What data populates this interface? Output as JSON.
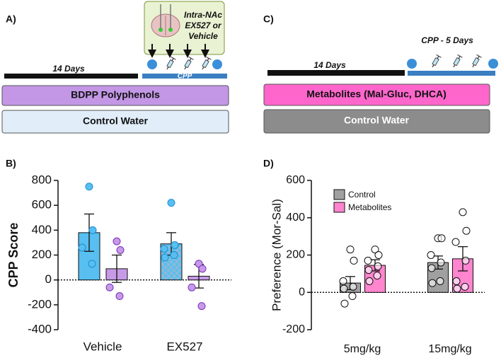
{
  "panels": {
    "a": "A)",
    "b": "B)",
    "c": "C)",
    "d": "D)"
  },
  "diagram_a": {
    "injection": [
      "Intra-NAc",
      "EX527 or",
      "Vehicle"
    ],
    "phase1": "14 Days",
    "phase2": "CPP",
    "treatment": "BDPP Polyphenols",
    "control": "Control Water"
  },
  "diagram_c": {
    "phase2": "CPP - 5 Days",
    "phase1": "14 Days",
    "treatment": "Metabolites (Mal-Gluc, DHCA)",
    "control": "Control Water"
  },
  "chart_data": [
    {
      "type": "bar",
      "ylabel": "CPP Score",
      "categories": [
        "Vehicle",
        "EX527"
      ],
      "ylim": [
        -400,
        800
      ],
      "yticks": [
        -400,
        -200,
        0,
        200,
        400,
        600,
        800
      ],
      "legend": false,
      "series": [
        {
          "color": "#58bff0",
          "hatch": [
            false,
            true
          ],
          "values": [
            380,
            290
          ],
          "errors": [
            150,
            90
          ],
          "points": [
            [
              750,
              400,
              260,
              130
            ],
            [
              620,
              280,
              250,
              200,
              180
            ]
          ]
        },
        {
          "color": "#c79ae6",
          "hatch": [
            false,
            false
          ],
          "values": [
            90,
            30
          ],
          "errors": [
            110,
            95
          ],
          "points": [
            [
              310,
              240,
              -60,
              -130
            ],
            [
              130,
              90,
              -60,
              -210
            ]
          ]
        }
      ]
    },
    {
      "type": "bar",
      "ylabel": "Preference (Mor-Sal)",
      "categories": [
        "5mg/kg",
        "15mg/kg"
      ],
      "ylim": [
        -200,
        600
      ],
      "yticks": [
        -200,
        0,
        200,
        400,
        600
      ],
      "legend": "upper left",
      "series": [
        {
          "name": "Control",
          "color": "#a0a0a0",
          "hatch": [
            false,
            false
          ],
          "values": [
            50,
            160
          ],
          "errors": [
            35,
            35
          ],
          "points": [
            [
              230,
              170,
              60,
              30,
              20,
              -20,
              -60
            ],
            [
              290,
              290,
              200,
              160,
              130,
              60,
              50
            ]
          ]
        },
        {
          "name": "Metabolites",
          "color": "#ff85cf",
          "hatch": [
            false,
            false
          ],
          "values": [
            145,
            180
          ],
          "errors": [
            30,
            65
          ],
          "points": [
            [
              230,
              200,
              170,
              140,
              120,
              90,
              60
            ],
            [
              430,
              330,
              270,
              170,
              60,
              30,
              20
            ]
          ]
        }
      ]
    }
  ]
}
